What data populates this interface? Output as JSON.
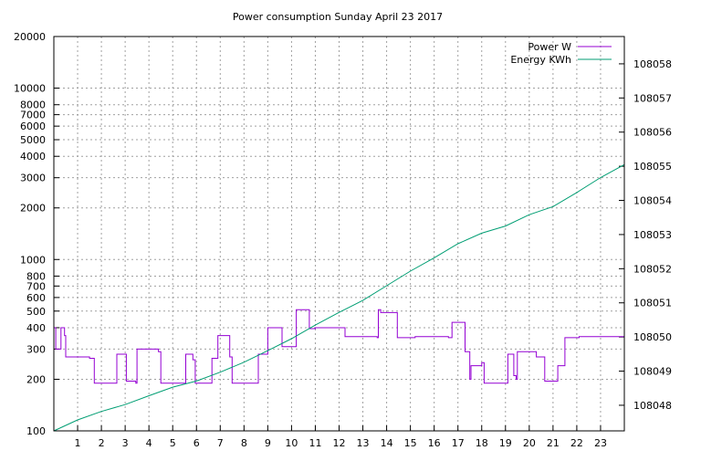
{
  "chart_data": {
    "type": "line",
    "title": "Power consumption Sunday April 23 2017",
    "x": {
      "range": [
        0,
        24
      ],
      "ticks": [
        1,
        2,
        3,
        4,
        5,
        6,
        7,
        8,
        9,
        10,
        11,
        12,
        13,
        14,
        15,
        16,
        17,
        18,
        19,
        20,
        21,
        22,
        23
      ],
      "grid": true
    },
    "y_left": {
      "scale": "log",
      "range": [
        100,
        20000
      ],
      "ticks": [
        100,
        200,
        300,
        400,
        500,
        600,
        700,
        800,
        1000,
        2000,
        3000,
        4000,
        5000,
        6000,
        7000,
        8000,
        10000,
        20000
      ],
      "grid_ticks": [
        200,
        300,
        400,
        500,
        600,
        700,
        800,
        1000,
        2000,
        3000,
        4000,
        5000,
        6000,
        7000,
        8000,
        10000
      ]
    },
    "y_right": {
      "scale": "linear",
      "range": [
        108047.25,
        108058.8
      ],
      "ticks": [
        108048,
        108049,
        108050,
        108051,
        108052,
        108053,
        108054,
        108055,
        108056,
        108057,
        108058
      ]
    },
    "legend": {
      "position": "top-right"
    },
    "series": [
      {
        "name": "Power W",
        "axis": "left",
        "color": "#9400d3",
        "step": true,
        "points": [
          [
            0,
            400
          ],
          [
            0.08,
            300
          ],
          [
            0.3,
            400
          ],
          [
            0.45,
            360
          ],
          [
            0.5,
            270
          ],
          [
            1.2,
            270
          ],
          [
            1.5,
            265
          ],
          [
            1.7,
            190
          ],
          [
            2.6,
            190
          ],
          [
            2.65,
            280
          ],
          [
            3.05,
            195
          ],
          [
            3.45,
            190
          ],
          [
            3.5,
            300
          ],
          [
            4.3,
            300
          ],
          [
            4.4,
            290
          ],
          [
            4.5,
            190
          ],
          [
            5.4,
            190
          ],
          [
            5.55,
            280
          ],
          [
            5.85,
            260
          ],
          [
            5.95,
            190
          ],
          [
            6.6,
            190
          ],
          [
            6.65,
            265
          ],
          [
            6.8,
            265
          ],
          [
            6.9,
            360
          ],
          [
            7.35,
            360
          ],
          [
            7.4,
            270
          ],
          [
            7.5,
            190
          ],
          [
            8.5,
            190
          ],
          [
            8.6,
            280
          ],
          [
            8.95,
            280
          ],
          [
            9.0,
            400
          ],
          [
            9.55,
            400
          ],
          [
            9.6,
            310
          ],
          [
            10.1,
            310
          ],
          [
            10.2,
            510
          ],
          [
            10.7,
            510
          ],
          [
            10.75,
            395
          ],
          [
            11.0,
            400
          ],
          [
            12.2,
            400
          ],
          [
            12.25,
            355
          ],
          [
            13.6,
            350
          ],
          [
            13.65,
            510
          ],
          [
            13.75,
            490
          ],
          [
            14.4,
            490
          ],
          [
            14.45,
            350
          ],
          [
            15.1,
            350
          ],
          [
            15.2,
            355
          ],
          [
            16.5,
            355
          ],
          [
            16.6,
            350
          ],
          [
            16.75,
            430
          ],
          [
            17.2,
            430
          ],
          [
            17.3,
            290
          ],
          [
            17.5,
            200
          ],
          [
            17.55,
            240
          ],
          [
            17.7,
            240
          ],
          [
            18.0,
            250
          ],
          [
            18.1,
            190
          ],
          [
            18.8,
            190
          ],
          [
            19.1,
            280
          ],
          [
            19.3,
            280
          ],
          [
            19.35,
            210
          ],
          [
            19.45,
            200
          ],
          [
            19.5,
            290
          ],
          [
            20.25,
            290
          ],
          [
            20.3,
            270
          ],
          [
            20.6,
            270
          ],
          [
            20.65,
            195
          ],
          [
            21.0,
            195
          ],
          [
            21.2,
            240
          ],
          [
            21.4,
            240
          ],
          [
            21.5,
            350
          ],
          [
            22.05,
            350
          ],
          [
            22.1,
            355
          ],
          [
            24,
            355
          ]
        ]
      },
      {
        "name": "Energy KWh",
        "axis": "right",
        "color": "#009e73",
        "step": false,
        "points": [
          [
            0,
            108047.25
          ],
          [
            1,
            108047.57
          ],
          [
            2,
            108047.82
          ],
          [
            3,
            108048.02
          ],
          [
            4,
            108048.28
          ],
          [
            5,
            108048.53
          ],
          [
            6,
            108048.71
          ],
          [
            7,
            108048.97
          ],
          [
            8,
            108049.26
          ],
          [
            9,
            108049.6
          ],
          [
            10,
            108049.95
          ],
          [
            11,
            108050.35
          ],
          [
            12,
            108050.72
          ],
          [
            13,
            108051.07
          ],
          [
            14,
            108051.5
          ],
          [
            15,
            108051.93
          ],
          [
            16,
            108052.32
          ],
          [
            17,
            108052.73
          ],
          [
            18,
            108053.04
          ],
          [
            19,
            108053.25
          ],
          [
            20,
            108053.58
          ],
          [
            21,
            108053.82
          ],
          [
            22,
            108054.23
          ],
          [
            23,
            108054.67
          ],
          [
            24,
            108055.05
          ]
        ]
      }
    ]
  }
}
